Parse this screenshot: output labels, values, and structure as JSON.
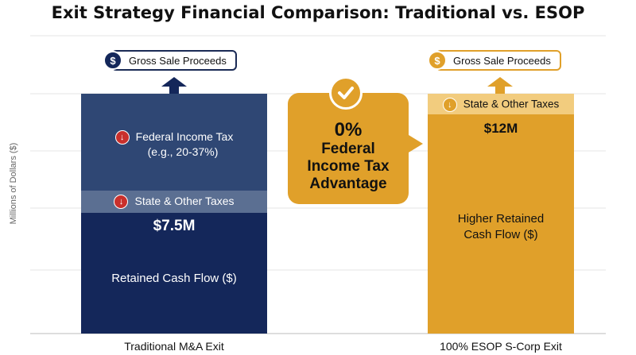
{
  "title": "Exit Strategy Financial Comparison: Traditional vs. ESOP",
  "chart_data": {
    "type": "bar",
    "ylabel": "Millions of Dollars ($)",
    "categories": [
      "Traditional M&A Exit",
      "100% ESOP S-Corp Exit"
    ],
    "bars": [
      {
        "category": "Traditional M&A Exit",
        "top_label": "Gross Sale Proceeds",
        "segments": [
          {
            "label": "Federal Income Tax",
            "sublabel": "(e.g., 20-37%)",
            "kind": "tax"
          },
          {
            "label": "State & Other Taxes",
            "kind": "tax"
          },
          {
            "label": "Retained Cash Flow ($)",
            "value_label": "$7.5M",
            "kind": "retained"
          }
        ]
      },
      {
        "category": "100% ESOP S-Corp Exit",
        "top_label": "Gross Sale Proceeds",
        "segments": [
          {
            "label": "State & Other Taxes",
            "kind": "tax"
          },
          {
            "label": "Higher Retained Cash Flow ($)",
            "line1": "Higher Retained",
            "line2": "Cash Flow ($)",
            "value_label": "$12M",
            "kind": "retained"
          }
        ]
      }
    ],
    "callout": {
      "pct": "0%",
      "line1": "Federal",
      "line2": "Income Tax",
      "line3": "Advantage"
    },
    "grid": true
  },
  "colors": {
    "navy_dark": "#14275a",
    "navy_mid": "#2f4774",
    "navy_light": "#5b6f92",
    "gold": "#e0a02a",
    "gold_light": "#f2cc7e",
    "tax_red": "#c9302c"
  },
  "icons": {
    "dollar": "$",
    "check": "check-icon",
    "down_arrow": "arrow-down-icon"
  }
}
